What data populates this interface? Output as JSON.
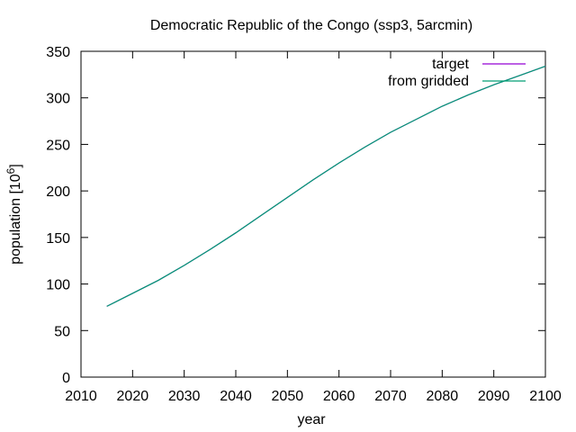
{
  "chart_data": {
    "type": "line",
    "title": "Democratic Republic of the Congo (ssp3, 5arcmin)",
    "xlabel": "year",
    "ylabel": "population [10",
    "ylabel_sup": "6",
    "ylabel_tail": "]",
    "xlim": [
      2010,
      2100
    ],
    "ylim": [
      0,
      350
    ],
    "xticks": [
      2010,
      2020,
      2030,
      2040,
      2050,
      2060,
      2070,
      2080,
      2090,
      2100
    ],
    "yticks": [
      0,
      50,
      100,
      150,
      200,
      250,
      300,
      350
    ],
    "grid": false,
    "legend_position": "top-right",
    "series": [
      {
        "name": "target",
        "color": "#9400d3",
        "x": [
          2015,
          2020,
          2025,
          2030,
          2035,
          2040,
          2045,
          2050,
          2055,
          2060,
          2065,
          2070,
          2075,
          2080,
          2085,
          2090,
          2095,
          2100
        ],
        "y": [
          76,
          90,
          104,
          120,
          137,
          155,
          174,
          193,
          212,
          230,
          247,
          263,
          277,
          291,
          303,
          314,
          324,
          334
        ]
      },
      {
        "name": "from gridded",
        "color": "#009e73",
        "x": [
          2015,
          2020,
          2025,
          2030,
          2035,
          2040,
          2045,
          2050,
          2055,
          2060,
          2065,
          2070,
          2075,
          2080,
          2085,
          2090,
          2095,
          2100
        ],
        "y": [
          76,
          90,
          104,
          120,
          137,
          155,
          174,
          193,
          212,
          230,
          247,
          263,
          277,
          291,
          303,
          314,
          324,
          334
        ]
      }
    ]
  }
}
